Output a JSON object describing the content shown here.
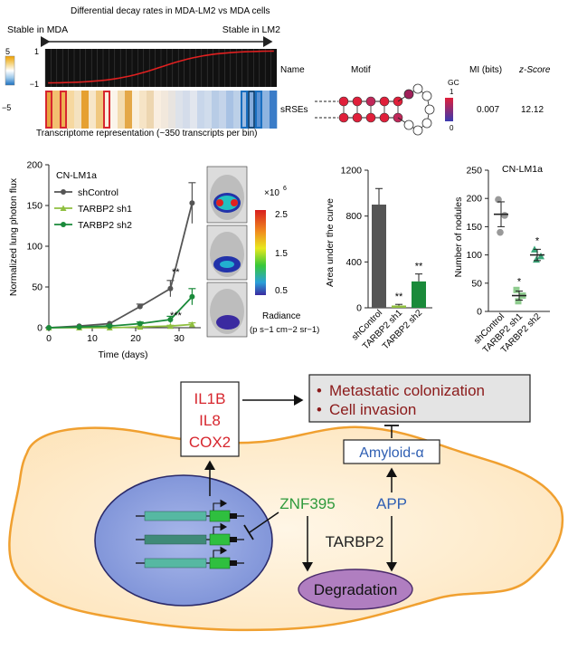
{
  "panel_a": {
    "title": "Differential decay rates in MDA-LM2 vs MDA cells",
    "stable_left": "Stable in MDA",
    "stable_right": "Stable in LM2",
    "scale_top": "1",
    "scale_bottom": "−1",
    "cbar_top": "5",
    "cbar_bottom": "−5",
    "transcriptome_label": "Transcriptome representation (~350 transcripts per bin)",
    "col_name": "Name",
    "col_motif": "Motif",
    "col_mi": "MI (bits)",
    "col_z": "z-Score",
    "row_name": "sRSEs",
    "row_mi": "0.007",
    "row_z": "12.12",
    "gc_label": "GC",
    "gc_top": "1",
    "gc_bottom": "0"
  },
  "chart_data": [
    {
      "type": "line",
      "panel_title": "CN-LM1a",
      "xlabel": "Time (days)",
      "ylabel": "Normalized lung photon flux",
      "xlim": [
        0,
        35
      ],
      "ylim": [
        0,
        200
      ],
      "xticks": [
        "0",
        "10",
        "20",
        "30"
      ],
      "yticks": [
        "0",
        "50",
        "100",
        "150",
        "200"
      ],
      "series": [
        {
          "name": "shControl",
          "color": "#555555",
          "x": [
            0,
            7,
            14,
            21,
            28,
            33
          ],
          "y": [
            0,
            2,
            5,
            26,
            48,
            153
          ]
        },
        {
          "name": "TARBP2 sh1",
          "color": "#8fbf3f",
          "x": [
            0,
            7,
            14,
            21,
            28,
            33
          ],
          "y": [
            0,
            0,
            0,
            1,
            2,
            4
          ]
        },
        {
          "name": "TARBP2 sh2",
          "color": "#1a8a3a",
          "x": [
            0,
            7,
            14,
            21,
            28,
            33
          ],
          "y": [
            0,
            1,
            2,
            5,
            10,
            38
          ]
        }
      ],
      "annotations": [
        "**",
        "***"
      ]
    },
    {
      "type": "bar",
      "ylabel": "Area under the curve",
      "ylim": [
        0,
        1200
      ],
      "yticks": [
        "0",
        "400",
        "800",
        "1200"
      ],
      "categories": [
        "shControl",
        "TARBP2 sh1",
        "TARBP2 sh2"
      ],
      "values": [
        900,
        20,
        230
      ],
      "colors": [
        "#555555",
        "#8fbf3f",
        "#1a8a3a"
      ],
      "annotations": [
        "",
        "**",
        "**"
      ]
    },
    {
      "type": "scatter",
      "panel_title": "CN-LM1a",
      "ylabel": "Number of nodules",
      "ylim": [
        0,
        250
      ],
      "yticks": [
        "0",
        "50",
        "100",
        "150",
        "200",
        "250"
      ],
      "categories": [
        "shControl",
        "TARBP2 sh1",
        "TARBP2 sh2"
      ],
      "colors": [
        "#999999",
        "#8fcc8f",
        "#3aa87a"
      ],
      "means": [
        172,
        28,
        100
      ],
      "points": [
        [
          198,
          170,
          140
        ],
        [
          38,
          28,
          18
        ],
        [
          110,
          98,
          92
        ]
      ],
      "annotations": [
        "",
        "*",
        "*"
      ]
    }
  ],
  "radiance": {
    "multiplier": "×10",
    "exponent": "6",
    "ticks": [
      "2.5",
      "1.5",
      "0.5"
    ],
    "title": "Radiance",
    "units": "(p s−1 cm−2 sr−1)"
  },
  "model": {
    "cytokines": [
      "IL1B",
      "IL8",
      "COX2"
    ],
    "outcomes": [
      "Metastatic colonization",
      "Cell invasion"
    ],
    "amyloid": "Amyloid-α",
    "znf": "ZNF395",
    "app": "APP",
    "tarbp2": "TARBP2",
    "degradation": "Degradation",
    "colors": {
      "red": "#d7262e",
      "green": "#2e9a3c",
      "blue": "#2f5fb3"
    }
  }
}
